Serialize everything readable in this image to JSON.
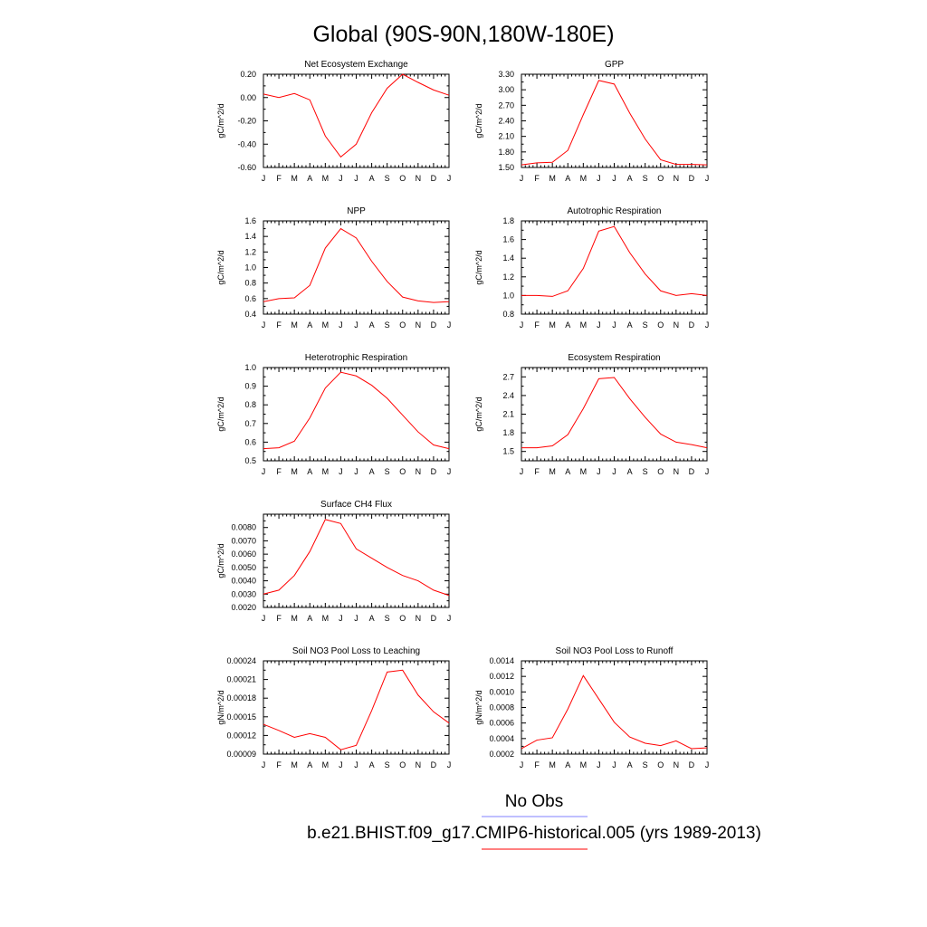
{
  "title": "Global (90S-90N,180W-180E)",
  "months": [
    "J",
    "F",
    "M",
    "A",
    "M",
    "J",
    "J",
    "A",
    "S",
    "O",
    "N",
    "D",
    "J"
  ],
  "legend": {
    "obs_label": "No Obs",
    "obs_color": "#8080ff",
    "model_label": "b.e21.BHIST.f09_g17.CMIP6-historical.005 (yrs 1989-2013)",
    "model_color": "#ff0000"
  },
  "chart_data": [
    {
      "type": "line",
      "title": "Net Ecosystem Exchange",
      "ylabel": "gC/m^2/d",
      "ylim": [
        -0.6,
        0.2
      ],
      "yticks": [
        "0.20",
        "0.00",
        "-0.20",
        "-0.40",
        "-0.60"
      ],
      "ytick_values": [
        0.2,
        0.0,
        -0.2,
        -0.4,
        -0.6
      ],
      "values": [
        0.03,
        0.0,
        0.035,
        -0.02,
        -0.33,
        -0.51,
        -0.4,
        -0.13,
        0.08,
        0.2,
        0.13,
        0.065,
        0.02
      ]
    },
    {
      "type": "line",
      "title": "GPP",
      "ylabel": "gC/m^2/d",
      "ylim": [
        1.5,
        3.3
      ],
      "yticks": [
        "3.30",
        "3.00",
        "2.70",
        "2.40",
        "2.10",
        "1.80",
        "1.50"
      ],
      "ytick_values": [
        3.3,
        3.0,
        2.7,
        2.4,
        2.1,
        1.8,
        1.5
      ],
      "values": [
        1.55,
        1.59,
        1.6,
        1.83,
        2.52,
        3.18,
        3.11,
        2.55,
        2.05,
        1.65,
        1.56,
        1.56,
        1.55
      ]
    },
    {
      "type": "line",
      "title": "NPP",
      "ylabel": "gC/m^2/d",
      "ylim": [
        0.4,
        1.6
      ],
      "yticks": [
        "1.6",
        "1.4",
        "1.2",
        "1.0",
        "0.8",
        "0.6",
        "0.4"
      ],
      "ytick_values": [
        1.6,
        1.4,
        1.2,
        1.0,
        0.8,
        0.6,
        0.4
      ],
      "values": [
        0.56,
        0.6,
        0.61,
        0.77,
        1.25,
        1.5,
        1.38,
        1.08,
        0.82,
        0.62,
        0.57,
        0.55,
        0.56
      ]
    },
    {
      "type": "line",
      "title": "Autotrophic Respiration",
      "ylabel": "gC/m^2/d",
      "ylim": [
        0.8,
        1.8
      ],
      "yticks": [
        "1.8",
        "1.6",
        "1.4",
        "1.2",
        "1.0",
        "0.8"
      ],
      "ytick_values": [
        1.8,
        1.6,
        1.4,
        1.2,
        1.0,
        0.8
      ],
      "values": [
        1.0,
        1.0,
        0.99,
        1.05,
        1.29,
        1.69,
        1.74,
        1.46,
        1.23,
        1.05,
        1.0,
        1.02,
        1.0
      ]
    },
    {
      "type": "line",
      "title": "Heterotrophic Respiration",
      "ylabel": "gC/m^2/d",
      "ylim": [
        0.5,
        1.0
      ],
      "yticks": [
        "1.0",
        "0.9",
        "0.8",
        "0.7",
        "0.6",
        "0.5"
      ],
      "ytick_values": [
        1.0,
        0.9,
        0.8,
        0.7,
        0.6,
        0.5
      ],
      "values": [
        0.565,
        0.57,
        0.605,
        0.73,
        0.89,
        0.975,
        0.955,
        0.905,
        0.835,
        0.745,
        0.655,
        0.585,
        0.565
      ]
    },
    {
      "type": "line",
      "title": "Ecosystem Respiration",
      "ylabel": "gC/m^2/d",
      "ylim": [
        1.35,
        2.85
      ],
      "yticks": [
        "2.7",
        "2.4",
        "2.1",
        "1.8",
        "1.5"
      ],
      "ytick_values": [
        2.7,
        2.4,
        2.1,
        1.8,
        1.5
      ],
      "values": [
        1.56,
        1.56,
        1.59,
        1.77,
        2.19,
        2.67,
        2.69,
        2.35,
        2.05,
        1.78,
        1.65,
        1.61,
        1.56
      ]
    },
    {
      "type": "line",
      "title": "Surface CH4 Flux",
      "ylabel": "gC/m^2/d",
      "ylim": [
        0.002,
        0.009
      ],
      "yticks": [
        "0.0080",
        "0.0070",
        "0.0060",
        "0.0050",
        "0.0040",
        "0.0030",
        "0.0020"
      ],
      "ytick_values": [
        0.008,
        0.007,
        0.006,
        0.005,
        0.004,
        0.003,
        0.002
      ],
      "values": [
        0.003,
        0.0033,
        0.0044,
        0.0062,
        0.0086,
        0.0083,
        0.0064,
        0.0057,
        0.005,
        0.0044,
        0.004,
        0.0033,
        0.0029
      ]
    },
    {
      "type": "line",
      "title": "Soil NO3 Pool Loss to Leaching",
      "ylabel": "gN/m^2/d",
      "ylim": [
        9e-05,
        0.00024
      ],
      "yticks": [
        "0.00024",
        "0.00021",
        "0.00018",
        "0.00015",
        "0.00012",
        "0.00009"
      ],
      "ytick_values": [
        0.00024,
        0.00021,
        0.00018,
        0.00015,
        0.00012,
        9e-05
      ],
      "values": [
        0.000138,
        0.000128,
        0.000117,
        0.000123,
        0.000117,
        9.7e-05,
        0.000104,
        0.00016,
        0.000222,
        0.000225,
        0.000185,
        0.000158,
        0.00014
      ]
    },
    {
      "type": "line",
      "title": "Soil NO3 Pool Loss to Runoff",
      "ylabel": "gN/m^2/d",
      "ylim": [
        0.0002,
        0.0014
      ],
      "yticks": [
        "0.0014",
        "0.0012",
        "0.0010",
        "0.0008",
        "0.0006",
        "0.0004",
        "0.0002"
      ],
      "ytick_values": [
        0.0014,
        0.0012,
        0.001,
        0.0008,
        0.0006,
        0.0004,
        0.0002
      ],
      "values": [
        0.00027,
        0.00038,
        0.00041,
        0.00078,
        0.00121,
        0.00091,
        0.00061,
        0.00042,
        0.00034,
        0.00031,
        0.00037,
        0.00027,
        0.00028
      ]
    }
  ]
}
